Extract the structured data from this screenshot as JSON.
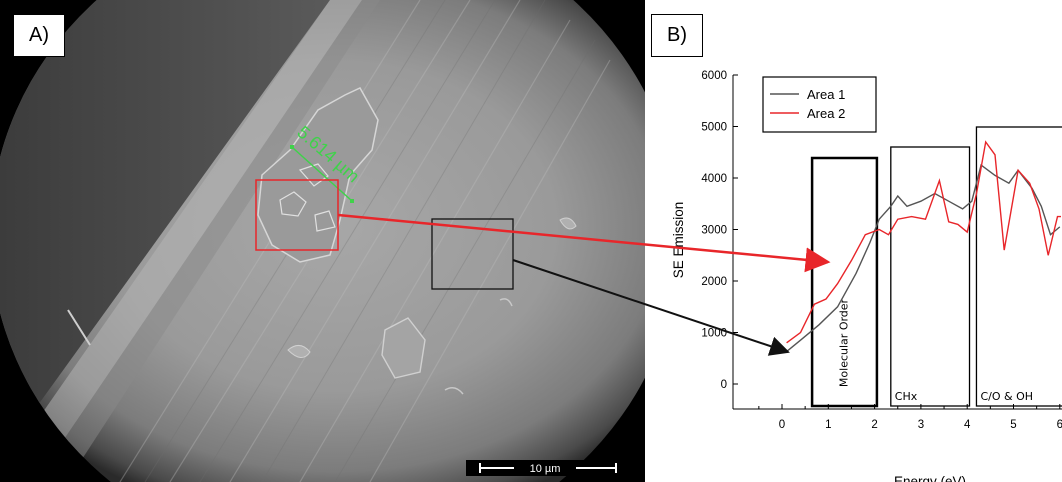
{
  "panel_a": {
    "label": "A)",
    "measurement_label": "5.614 µm",
    "scale_bar_label": "10 µm"
  },
  "panel_b": {
    "label": "B)"
  },
  "chart_data": {
    "type": "line",
    "xlabel": "Energy (eV)",
    "ylabel": "SE Emission",
    "xlim": [
      -1,
      6
    ],
    "ylim": [
      -500,
      6000
    ],
    "x_ticks": [
      0,
      1,
      2,
      3,
      4,
      5,
      6
    ],
    "y_ticks": [
      0,
      1000,
      2000,
      3000,
      4000,
      5000,
      6000
    ],
    "legend": {
      "position": "top-left"
    },
    "series": [
      {
        "name": "Area 1",
        "color": "#555555",
        "points": [
          [
            0.1,
            630
          ],
          [
            0.4,
            850
          ],
          [
            0.8,
            1150
          ],
          [
            1.2,
            1500
          ],
          [
            1.6,
            2150
          ],
          [
            1.9,
            2750
          ],
          [
            2.1,
            3200
          ],
          [
            2.35,
            3450
          ],
          [
            2.5,
            3650
          ],
          [
            2.7,
            3450
          ],
          [
            3.0,
            3550
          ],
          [
            3.3,
            3700
          ],
          [
            3.6,
            3550
          ],
          [
            3.9,
            3400
          ],
          [
            4.1,
            3550
          ],
          [
            4.3,
            4250
          ],
          [
            4.6,
            4050
          ],
          [
            4.9,
            3900
          ],
          [
            5.1,
            4150
          ],
          [
            5.4,
            3800
          ],
          [
            5.6,
            3450
          ],
          [
            5.8,
            2900
          ],
          [
            6.0,
            3050
          ]
        ]
      },
      {
        "name": "Area 2",
        "color": "#e8262a",
        "points": [
          [
            0.1,
            800
          ],
          [
            0.4,
            1000
          ],
          [
            0.7,
            1550
          ],
          [
            0.95,
            1650
          ],
          [
            1.2,
            1950
          ],
          [
            1.5,
            2400
          ],
          [
            1.8,
            2900
          ],
          [
            2.1,
            3000
          ],
          [
            2.3,
            2900
          ],
          [
            2.5,
            3200
          ],
          [
            2.8,
            3250
          ],
          [
            3.1,
            3200
          ],
          [
            3.4,
            3950
          ],
          [
            3.6,
            3150
          ],
          [
            3.8,
            3100
          ],
          [
            4.0,
            2950
          ],
          [
            4.2,
            3700
          ],
          [
            4.4,
            4700
          ],
          [
            4.6,
            4450
          ],
          [
            4.8,
            2600
          ],
          [
            5.1,
            4150
          ],
          [
            5.35,
            3900
          ],
          [
            5.55,
            3400
          ],
          [
            5.75,
            2500
          ],
          [
            5.95,
            3250
          ],
          [
            6.1,
            3250
          ]
        ]
      }
    ],
    "regions": [
      {
        "label": "Molecular Order",
        "x_range": [
          0.65,
          2.05
        ]
      },
      {
        "label": "CHx",
        "x_range": [
          2.35,
          4.05
        ]
      },
      {
        "label": "C/O & OH",
        "x_range": [
          4.2,
          6.15
        ]
      }
    ]
  }
}
